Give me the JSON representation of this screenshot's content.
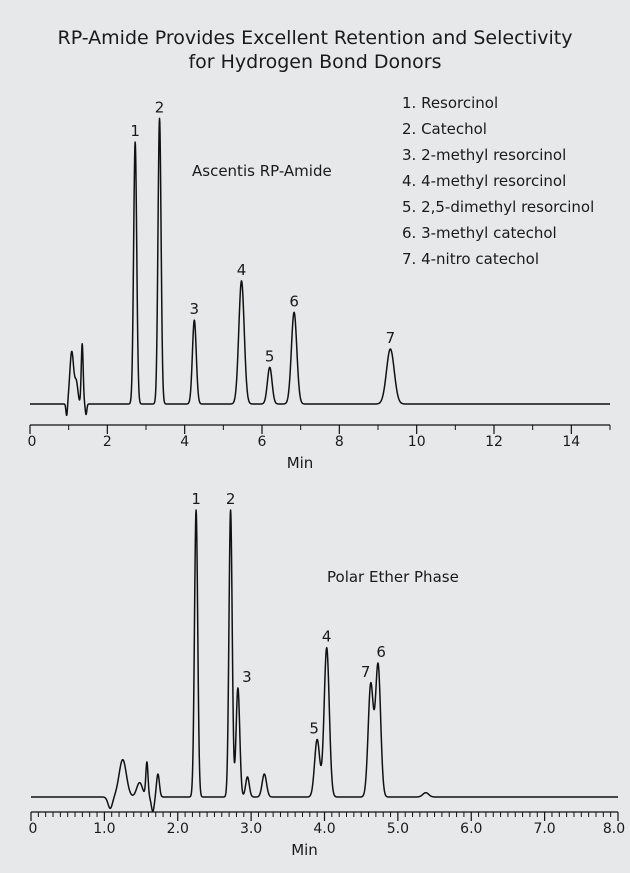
{
  "title_line1": "RP-Amide Provides Excellent Retention and Selectivity",
  "title_line2": "for Hydrogen Bond Donors",
  "legend": [
    "1. Resorcinol",
    "2. Catechol",
    "3. 2-methyl resorcinol",
    "4. 4-methyl resorcinol",
    "5. 2,5-dimethyl resorcinol",
    "6. 3-methyl catechol",
    "7. 4-nitro catechol"
  ],
  "colors": {
    "background": "#e7e8e9",
    "trace": "#111111",
    "text": "#1a1a1a"
  },
  "chart_data": [
    {
      "type": "line",
      "label": "Ascentis RP-Amide",
      "xlabel": "Min",
      "ylabel": "",
      "xlim": [
        0,
        15
      ],
      "ylim": [
        0,
        1
      ],
      "x_ticks": [
        0,
        2,
        4,
        6,
        8,
        10,
        12,
        14
      ],
      "x_tick_labels": [
        "0",
        "2",
        "4",
        "6",
        "8",
        "10",
        "12",
        "14"
      ],
      "minor_tick_step": 1,
      "baseline_disturbance": [
        {
          "t": 0.95,
          "h": -0.05,
          "w": 0.02
        },
        {
          "t": 1.08,
          "h": 0.2,
          "w": 0.05
        },
        {
          "t": 1.2,
          "h": 0.08,
          "w": 0.04
        },
        {
          "t": 1.35,
          "h": 0.23,
          "w": 0.025
        },
        {
          "t": 1.45,
          "h": -0.04,
          "w": 0.02
        }
      ],
      "peaks": [
        {
          "label": "1",
          "t": 2.72,
          "h": 1.0,
          "w": 0.04
        },
        {
          "label": "2",
          "t": 3.35,
          "h": 1.09,
          "w": 0.04
        },
        {
          "label": "3",
          "t": 4.25,
          "h": 0.32,
          "w": 0.05
        },
        {
          "label": "4",
          "t": 5.47,
          "h": 0.47,
          "w": 0.07
        },
        {
          "label": "5",
          "t": 6.2,
          "h": 0.14,
          "w": 0.06
        },
        {
          "label": "6",
          "t": 6.83,
          "h": 0.35,
          "w": 0.07
        },
        {
          "label": "7",
          "t": 9.32,
          "h": 0.21,
          "w": 0.1
        }
      ]
    },
    {
      "type": "line",
      "label": "Polar Ether Phase",
      "xlabel": "Min",
      "ylabel": "",
      "xlim": [
        0,
        8
      ],
      "ylim": [
        0,
        1
      ],
      "x_ticks": [
        0,
        1,
        2,
        3,
        4,
        5,
        6,
        7,
        8
      ],
      "x_tick_labels": [
        "0",
        "1.0",
        "2.0",
        "3.0",
        "4.0",
        "5.0",
        "6.0",
        "7.0",
        "8.0"
      ],
      "minor_tick_step": 0.1,
      "baseline_disturbance": [
        {
          "t": 1.08,
          "h": -0.04,
          "w": 0.03
        },
        {
          "t": 1.25,
          "h": 0.13,
          "w": 0.05
        },
        {
          "t": 1.48,
          "h": 0.05,
          "w": 0.04
        },
        {
          "t": 1.58,
          "h": 0.12,
          "w": 0.015
        },
        {
          "t": 1.66,
          "h": -0.05,
          "w": 0.02
        },
        {
          "t": 1.73,
          "h": 0.08,
          "w": 0.02
        }
      ],
      "peaks": [
        {
          "label": "1",
          "t": 2.25,
          "h": 1.0,
          "w": 0.022
        },
        {
          "label": "2",
          "t": 2.72,
          "h": 1.0,
          "w": 0.022
        },
        {
          "label": "3",
          "t": 2.82,
          "h": 0.38,
          "w": 0.025
        },
        {
          "label": "",
          "t": 2.95,
          "h": 0.07,
          "w": 0.025
        },
        {
          "label": "",
          "t": 3.18,
          "h": 0.08,
          "w": 0.03
        },
        {
          "label": "5",
          "t": 3.9,
          "h": 0.2,
          "w": 0.035
        },
        {
          "label": "4",
          "t": 4.03,
          "h": 0.52,
          "w": 0.035
        },
        {
          "label": "7",
          "t": 4.63,
          "h": 0.39,
          "w": 0.035
        },
        {
          "label": "6",
          "t": 4.73,
          "h": 0.46,
          "w": 0.035
        },
        {
          "label": "",
          "t": 5.38,
          "h": 0.015,
          "w": 0.04
        }
      ]
    }
  ]
}
